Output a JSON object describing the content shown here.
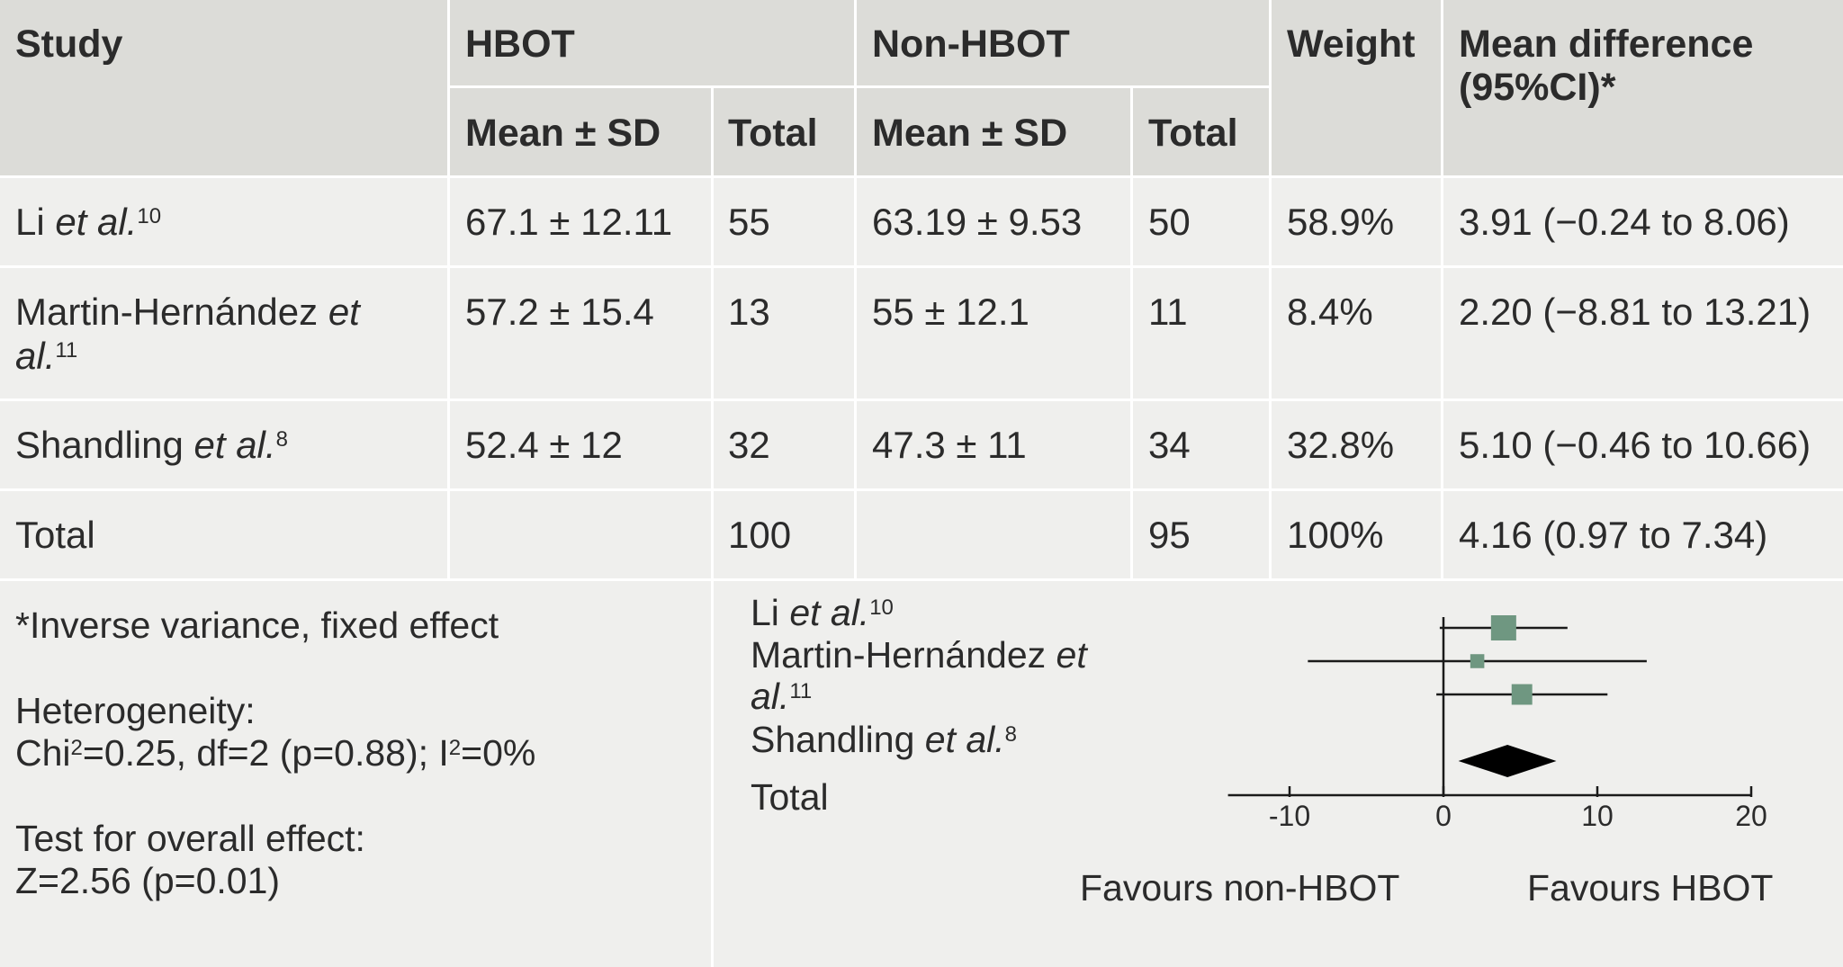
{
  "headers": {
    "study": "Study",
    "hbot": "HBOT",
    "non_hbot": "Non-HBOT",
    "weight": "Weight",
    "md_line1": "Mean difference",
    "md_line2": "(95%CI)*",
    "mean_sd": "Mean ± SD",
    "total": "Total"
  },
  "rows": [
    {
      "study_prefix": "Li ",
      "study_etal": "et al.",
      "ref": "10",
      "hbot_mean": "67.1 ± 12.11",
      "hbot_total": "55",
      "non_mean": "63.19 ± 9.53",
      "non_total": "50",
      "weight": "58.9%",
      "md": "3.91 (−0.24 to 8.06)"
    },
    {
      "study_prefix": "Martin-Hernández ",
      "study_etal": "et",
      "study_etal2": "al.",
      "ref": "11",
      "hbot_mean": "57.2 ± 15.4",
      "hbot_total": "13",
      "non_mean": "55 ± 12.1",
      "non_total": "11",
      "weight": "8.4%",
      "md": "2.20 (−8.81 to 13.21)"
    },
    {
      "study_prefix": "Shandling ",
      "study_etal": "et al.",
      "ref": "8",
      "hbot_mean": "52.4 ± 12",
      "hbot_total": "32",
      "non_mean": "47.3 ± 11",
      "non_total": "34",
      "weight": "32.8%",
      "md": "5.10 (−0.46 to 10.66)"
    }
  ],
  "total_row": {
    "label": "Total",
    "hbot_total": "100",
    "non_total": "95",
    "weight": "100%",
    "md": "4.16 (0.97 to 7.34)"
  },
  "notes": {
    "method": "*Inverse variance, fixed effect",
    "het_label": "Heterogeneity:",
    "het_chi_pre": "Chi",
    "het_chi_sup": "2",
    "het_mid": "=0.25, df=2 (p=0.88); I",
    "het_i_sup": "2",
    "het_end": "=0%",
    "test_label": "Test for overall effect:",
    "test_value": "Z=2.56 (p=0.01)"
  },
  "chart_data": {
    "type": "forest",
    "studies": [
      {
        "label": "Li et al.10",
        "md": 3.91,
        "ci": [
          -0.24,
          8.06
        ],
        "weight": 58.9
      },
      {
        "label": "Martin-Hernández et al.11",
        "md": 2.2,
        "ci": [
          -8.81,
          13.21
        ],
        "weight": 8.4
      },
      {
        "label": "Shandling et al.8",
        "md": 5.1,
        "ci": [
          -0.46,
          10.66
        ],
        "weight": 32.8
      }
    ],
    "pooled": {
      "label": "Total",
      "md": 4.16,
      "ci": [
        0.97,
        7.34
      ]
    },
    "xlim": [
      -14,
      20
    ],
    "xticks": [
      -10,
      0,
      10,
      20
    ],
    "xtick_labels": [
      "-10",
      "0",
      "10",
      "20"
    ],
    "favours_left": "Favours non-HBOT",
    "favours_right": "Favours HBOT",
    "marker_color": "#6f9781",
    "diamond_color": "#000000"
  }
}
